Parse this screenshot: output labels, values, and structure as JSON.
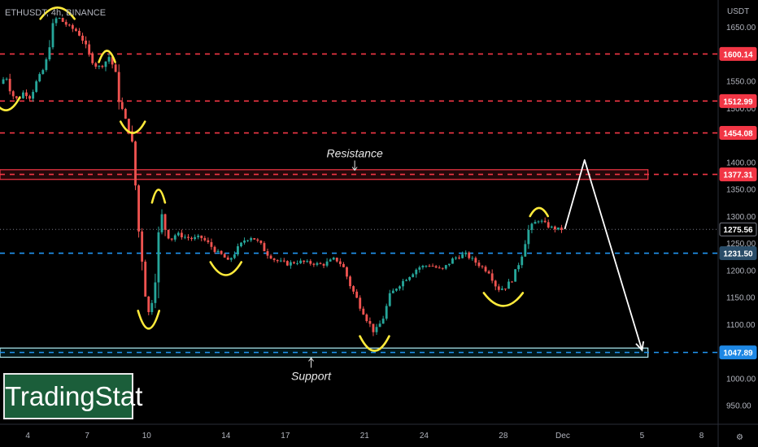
{
  "symbol_label": "ETHUSDT, 4h, BINANCE",
  "currency": "USDT",
  "watermark": "TradingStat",
  "colors": {
    "background": "#000000",
    "up": "#26a69a",
    "down": "#ef5350",
    "resistance_line": "#f23645",
    "support_line": "#2196f3",
    "zone_support": "#b2ebf2",
    "zone_resistance": "#f23645",
    "swing_marks": "#ffeb3b",
    "projection": "#ffffff"
  },
  "chart_data": {
    "type": "candlestick",
    "price_axis": {
      "ylim": [
        915,
        1700
      ],
      "ticks": [
        950,
        1000,
        1050,
        1100,
        1150,
        1200,
        1250,
        1300,
        1350,
        1400,
        1450,
        1500,
        1550,
        1600,
        1650
      ],
      "tick_labels": [
        "950.00",
        "1000.00",
        "1050.00",
        "1100.00",
        "1150.00",
        "1200.00",
        "1250.00",
        "1300.00",
        "1350.00",
        "1400.00",
        "1450.00",
        "1500.00",
        "1550.00",
        "1600.00",
        "1650.00"
      ]
    },
    "time_axis": {
      "labels": [
        "4",
        "7",
        "10",
        "14",
        "17",
        "21",
        "24",
        "28",
        "Dec",
        "5",
        "8"
      ],
      "positions": [
        0.5,
        3.5,
        6.5,
        10.5,
        13.5,
        17.5,
        20.5,
        24.5,
        27.5,
        31.5,
        34.5
      ],
      "xlim": [
        -0.9,
        35.3
      ]
    },
    "horizontal_levels": [
      {
        "price": 1600.14,
        "label": "1600.14",
        "kind": "resistance"
      },
      {
        "price": 1512.99,
        "label": "1512.99",
        "kind": "resistance"
      },
      {
        "price": 1454.08,
        "label": "1454.08",
        "kind": "resistance"
      },
      {
        "price": 1377.31,
        "label": "1377.31",
        "kind": "resistance"
      },
      {
        "price": 1231.5,
        "label": "1231.50",
        "kind": "support"
      },
      {
        "price": 1047.89,
        "label": "1047.89",
        "kind": "support"
      }
    ],
    "last_price": {
      "price": 1275.56,
      "label": "1275.56"
    },
    "zones": [
      {
        "name": "Resistance",
        "from": 1368,
        "to": 1386,
        "x_end": 31.8,
        "kind": "resistance"
      },
      {
        "name": "Support",
        "from": 1039,
        "to": 1056,
        "x_end": 31.8,
        "kind": "support"
      }
    ],
    "annotations": [
      {
        "text": "Resistance",
        "x": 17.0,
        "price": 1409
      },
      {
        "text": "Support",
        "x": 14.8,
        "price": 997
      }
    ],
    "projection_path": [
      {
        "x": 27.6,
        "price": 1276
      },
      {
        "x": 28.6,
        "price": 1404
      },
      {
        "x": 31.5,
        "price": 1052
      }
    ],
    "candle_step_days": 0.1667,
    "candles_start_x": -0.9,
    "close_path": [
      [
        -0.9,
        1545
      ],
      [
        -0.6,
        1560
      ],
      [
        -0.3,
        1525
      ],
      [
        0.0,
        1515
      ],
      [
        0.3,
        1530
      ],
      [
        0.6,
        1520
      ],
      [
        0.9,
        1545
      ],
      [
        1.2,
        1565
      ],
      [
        1.4,
        1580
      ],
      [
        1.6,
        1620
      ],
      [
        1.8,
        1655
      ],
      [
        2.0,
        1670
      ],
      [
        2.2,
        1662
      ],
      [
        2.6,
        1650
      ],
      [
        3.0,
        1642
      ],
      [
        3.3,
        1625
      ],
      [
        3.6,
        1598
      ],
      [
        4.0,
        1575
      ],
      [
        4.3,
        1580
      ],
      [
        4.6,
        1595
      ],
      [
        4.9,
        1570
      ],
      [
        5.1,
        1520
      ],
      [
        5.4,
        1478
      ],
      [
        5.7,
        1455
      ],
      [
        5.9,
        1390
      ],
      [
        6.0,
        1295
      ],
      [
        6.2,
        1250
      ],
      [
        6.4,
        1170
      ],
      [
        6.6,
        1120
      ],
      [
        6.8,
        1150
      ],
      [
        7.0,
        1210
      ],
      [
        7.2,
        1310
      ],
      [
        7.4,
        1280
      ],
      [
        7.7,
        1255
      ],
      [
        8.0,
        1268
      ],
      [
        8.4,
        1262
      ],
      [
        8.8,
        1258
      ],
      [
        9.2,
        1262
      ],
      [
        9.6,
        1250
      ],
      [
        10.0,
        1235
      ],
      [
        10.4,
        1225
      ],
      [
        10.6,
        1215
      ],
      [
        11.0,
        1235
      ],
      [
        11.4,
        1255
      ],
      [
        11.8,
        1262
      ],
      [
        12.2,
        1250
      ],
      [
        12.6,
        1230
      ],
      [
        13.0,
        1218
      ],
      [
        13.6,
        1212
      ],
      [
        14.2,
        1216
      ],
      [
        14.8,
        1213
      ],
      [
        15.4,
        1210
      ],
      [
        16.0,
        1222
      ],
      [
        16.4,
        1208
      ],
      [
        16.8,
        1170
      ],
      [
        17.2,
        1140
      ],
      [
        17.6,
        1110
      ],
      [
        18.0,
        1085
      ],
      [
        18.4,
        1108
      ],
      [
        18.8,
        1155
      ],
      [
        19.2,
        1172
      ],
      [
        19.6,
        1185
      ],
      [
        20.2,
        1205
      ],
      [
        20.8,
        1210
      ],
      [
        21.4,
        1200
      ],
      [
        22.0,
        1222
      ],
      [
        22.6,
        1230
      ],
      [
        23.2,
        1212
      ],
      [
        23.8,
        1196
      ],
      [
        24.2,
        1165
      ],
      [
        24.6,
        1168
      ],
      [
        25.0,
        1185
      ],
      [
        25.4,
        1225
      ],
      [
        25.7,
        1270
      ],
      [
        26.0,
        1285
      ],
      [
        26.3,
        1294
      ],
      [
        26.6,
        1285
      ],
      [
        27.0,
        1278
      ],
      [
        27.3,
        1276
      ],
      [
        27.6,
        1275.56
      ]
    ]
  }
}
